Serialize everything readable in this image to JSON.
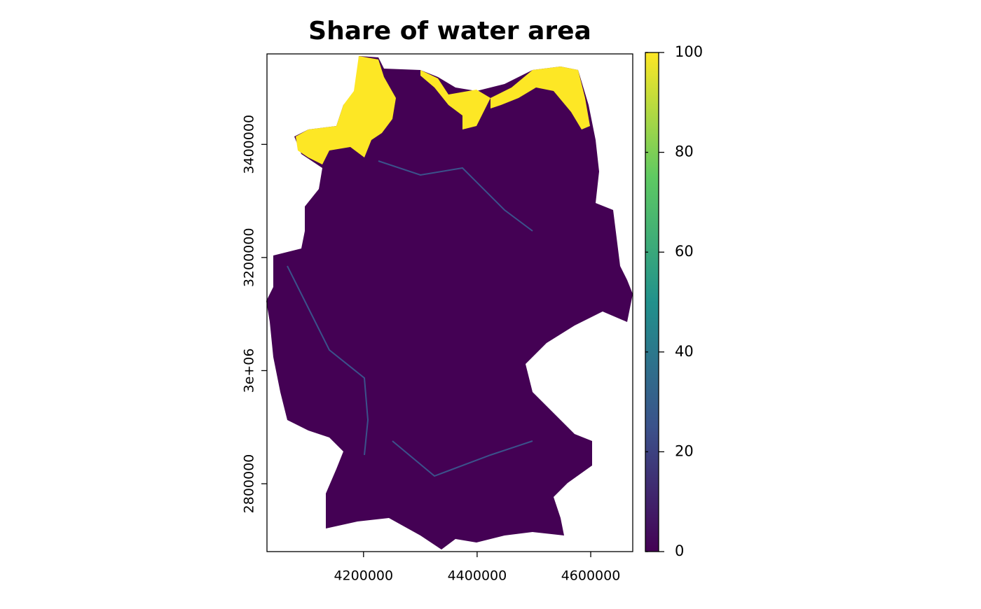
{
  "chart_data": {
    "type": "raster",
    "title": "Share of water area",
    "xlim": [
      4030000,
      4674000
    ],
    "ylim": [
      2680000,
      3560000
    ],
    "xticks": [
      4200000,
      4400000,
      4600000
    ],
    "yticks": [
      2800000,
      {
        "value": 3000000,
        "label": "3e+06"
      },
      3200000,
      3400000
    ],
    "colorbar": {
      "lim": [
        0,
        100
      ],
      "ticks": [
        0,
        20,
        40,
        60,
        80,
        100
      ],
      "colors": [
        "#440154",
        "#3b528b",
        "#21918c",
        "#5ec962",
        "#fde725"
      ]
    }
  }
}
